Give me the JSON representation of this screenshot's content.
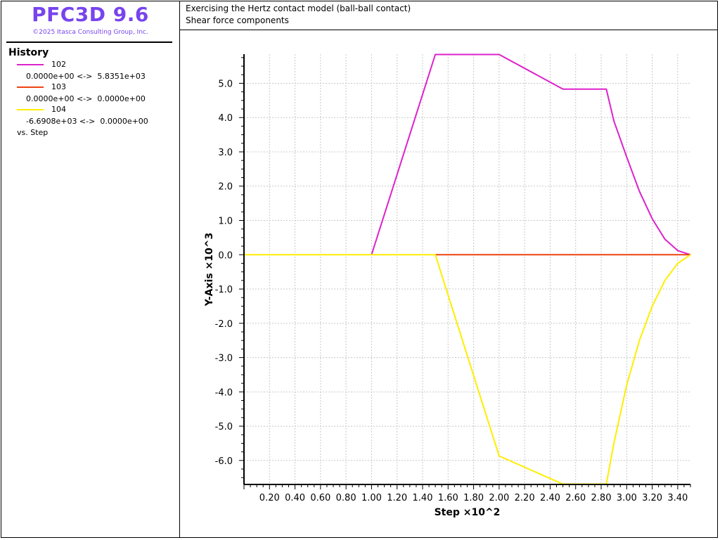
{
  "app": {
    "title": "PFC3D 9.6",
    "copyright": "©2025 Itasca Consulting Group, Inc."
  },
  "header": {
    "line1": "Exercising the Hertz contact model (ball-ball contact)",
    "line2": "Shear force components"
  },
  "legend": {
    "heading": "History",
    "items": [
      {
        "id": "102",
        "color": "#dd22cc",
        "range": "0.0000e+00 <->  5.8351e+03"
      },
      {
        "id": "103",
        "color": "#ee4411",
        "range": "0.0000e+00 <->  0.0000e+00"
      },
      {
        "id": "104",
        "color": "#ffee00",
        "range": "-6.6908e+03 <->  0.0000e+00"
      }
    ],
    "vs": "vs. Step"
  },
  "chart_data": {
    "type": "line",
    "xlabel": "Step ×10^2",
    "ylabel": "Y-Axis ×10^3",
    "xlim": [
      0.0,
      3.5
    ],
    "ylim": [
      -6.7,
      5.85
    ],
    "xticks": [
      "0.20",
      "0.40",
      "0.60",
      "0.80",
      "1.00",
      "1.20",
      "1.40",
      "1.60",
      "1.80",
      "2.00",
      "2.20",
      "2.40",
      "2.60",
      "2.80",
      "3.00",
      "3.20",
      "3.40"
    ],
    "yticks": [
      "5.0",
      "4.0",
      "3.0",
      "2.0",
      "1.0",
      "0.0",
      "-1.0",
      "-2.0",
      "-3.0",
      "-4.0",
      "-5.0",
      "-6.0"
    ],
    "grid": true,
    "series": [
      {
        "name": "102",
        "color": "#dd22cc",
        "x": [
          1.0,
          1.5,
          2.0,
          2.5,
          2.84,
          2.9,
          3.0,
          3.1,
          3.2,
          3.3,
          3.4,
          3.5
        ],
        "y": [
          0.0,
          5.84,
          5.84,
          4.83,
          4.83,
          3.9,
          2.85,
          1.85,
          1.05,
          0.45,
          0.12,
          0.0
        ]
      },
      {
        "name": "103",
        "color": "#ee4411",
        "x": [
          1.5,
          3.5
        ],
        "y": [
          0.0,
          0.0
        ]
      },
      {
        "name": "104",
        "color": "#ffee00",
        "x": [
          0.0,
          1.5,
          2.0,
          2.5,
          2.84,
          2.9,
          3.0,
          3.1,
          3.2,
          3.3,
          3.4,
          3.5
        ],
        "y": [
          0.0,
          0.0,
          -5.87,
          -6.69,
          -6.69,
          -5.5,
          -3.8,
          -2.5,
          -1.5,
          -0.75,
          -0.25,
          0.0
        ]
      }
    ]
  }
}
